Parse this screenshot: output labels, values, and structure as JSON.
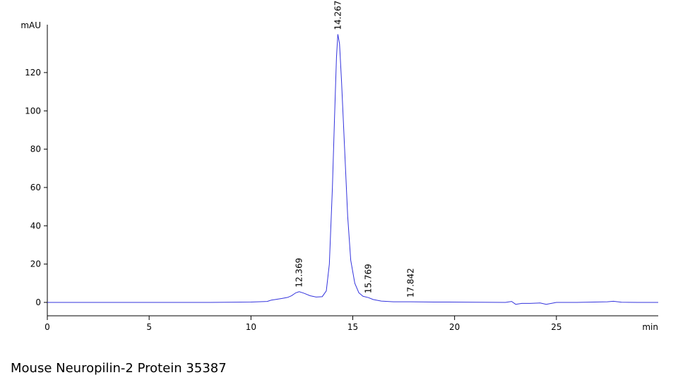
{
  "chart_data": {
    "type": "line",
    "title": "Mouse Neuropilin-2 Protein 35387",
    "xlabel": "min",
    "ylabel": "mAU",
    "x": [
      0,
      2,
      4,
      6,
      8,
      10,
      10.8,
      11.0,
      11.2,
      11.5,
      11.8,
      12.0,
      12.2,
      12.369,
      12.6,
      12.9,
      13.2,
      13.5,
      13.7,
      13.85,
      14.0,
      14.1,
      14.2,
      14.267,
      14.35,
      14.45,
      14.6,
      14.75,
      14.9,
      15.1,
      15.3,
      15.5,
      15.769,
      16.0,
      16.4,
      17.0,
      17.842,
      19,
      21,
      22.5,
      22.8,
      23.0,
      23.3,
      23.7,
      24.2,
      24.5,
      25,
      26,
      27.5,
      27.8,
      28.2,
      29,
      30
    ],
    "series": [
      {
        "name": "signal",
        "color": "#3333dd",
        "values": [
          0,
          0,
          0,
          0,
          0,
          0.2,
          0.5,
          1.2,
          1.5,
          2,
          2.6,
          3.5,
          5,
          5.6,
          4.8,
          3.5,
          2.8,
          3.0,
          6,
          20,
          60,
          95,
          128,
          140,
          135,
          115,
          80,
          45,
          22,
          10,
          5,
          3.2,
          2.5,
          1.5,
          0.7,
          0.3,
          0.3,
          0.2,
          0.1,
          0,
          0.5,
          -1,
          -0.5,
          -0.5,
          -0.3,
          -1,
          0,
          0,
          0.3,
          0.6,
          0.1,
          0,
          0
        ]
      }
    ],
    "annotations": [
      {
        "x": 12.369,
        "y": 5.6,
        "label": "12.369"
      },
      {
        "x": 14.267,
        "y": 140,
        "label": "14.267"
      },
      {
        "x": 15.769,
        "y": 2.5,
        "label": "15.769"
      },
      {
        "x": 17.842,
        "y": 0.3,
        "label": "17.842"
      }
    ],
    "xlim": [
      0,
      30
    ],
    "ylim": [
      -7,
      145
    ],
    "xticks": [
      0,
      5,
      10,
      15,
      20,
      25
    ],
    "yticks": [
      0,
      20,
      40,
      60,
      80,
      100,
      120
    ],
    "grid": false
  }
}
